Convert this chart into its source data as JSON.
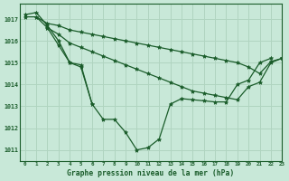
{
  "title": "Graphe pression niveau de la mer (hPa)",
  "bg_color": "#c8e8d8",
  "grid_color": "#b0d4c0",
  "line_color": "#1a5c2a",
  "xlim": [
    -0.5,
    23
  ],
  "ylim": [
    1010.5,
    1017.7
  ],
  "yticks": [
    1011,
    1012,
    1013,
    1014,
    1015,
    1016,
    1017
  ],
  "xticks": [
    0,
    1,
    2,
    3,
    4,
    5,
    6,
    7,
    8,
    9,
    10,
    11,
    12,
    13,
    14,
    15,
    16,
    17,
    18,
    19,
    20,
    21,
    22,
    23
  ],
  "series": [
    {
      "x": [
        0,
        1,
        2,
        3,
        4,
        5,
        6,
        7,
        8,
        9,
        10,
        11,
        12,
        13,
        14,
        15,
        16,
        17,
        18,
        19,
        20,
        21,
        22
      ],
      "y": [
        1017.2,
        1017.3,
        1016.7,
        1016.0,
        1015.0,
        1014.9,
        1013.1,
        1012.4,
        1012.4,
        1011.8,
        1011.0,
        1011.1,
        1011.5,
        1013.1,
        1013.35,
        1013.3,
        1013.25,
        1013.2,
        1013.2,
        1014.0,
        1014.2,
        1015.0,
        1015.2
      ]
    },
    {
      "x": [
        0,
        1,
        2,
        3,
        4,
        5,
        6
      ],
      "y": [
        1017.1,
        1017.1,
        1016.6,
        1015.8,
        1015.0,
        1014.8,
        1013.1
      ]
    },
    {
      "x": [
        1,
        2,
        3,
        4,
        5,
        6,
        7,
        8,
        9,
        10,
        11,
        12,
        13,
        14,
        15,
        16,
        17,
        18,
        19,
        20,
        21,
        22,
        23
      ],
      "y": [
        1017.1,
        1016.8,
        1016.7,
        1016.5,
        1016.4,
        1016.3,
        1016.2,
        1016.1,
        1016.0,
        1015.9,
        1015.8,
        1015.7,
        1015.6,
        1015.5,
        1015.4,
        1015.3,
        1015.2,
        1015.1,
        1015.0,
        1014.8,
        1014.5,
        1015.05,
        1015.2
      ]
    },
    {
      "x": [
        2,
        3,
        4,
        5,
        6,
        7,
        8,
        9,
        10,
        11,
        12,
        13,
        14,
        15,
        16,
        17,
        18,
        19,
        20,
        21,
        22,
        23
      ],
      "y": [
        1016.6,
        1016.3,
        1015.9,
        1015.7,
        1015.5,
        1015.3,
        1015.1,
        1014.9,
        1014.7,
        1014.5,
        1014.3,
        1014.1,
        1013.9,
        1013.7,
        1013.6,
        1013.5,
        1013.4,
        1013.3,
        1013.9,
        1014.1,
        1015.0,
        1015.2
      ]
    }
  ]
}
